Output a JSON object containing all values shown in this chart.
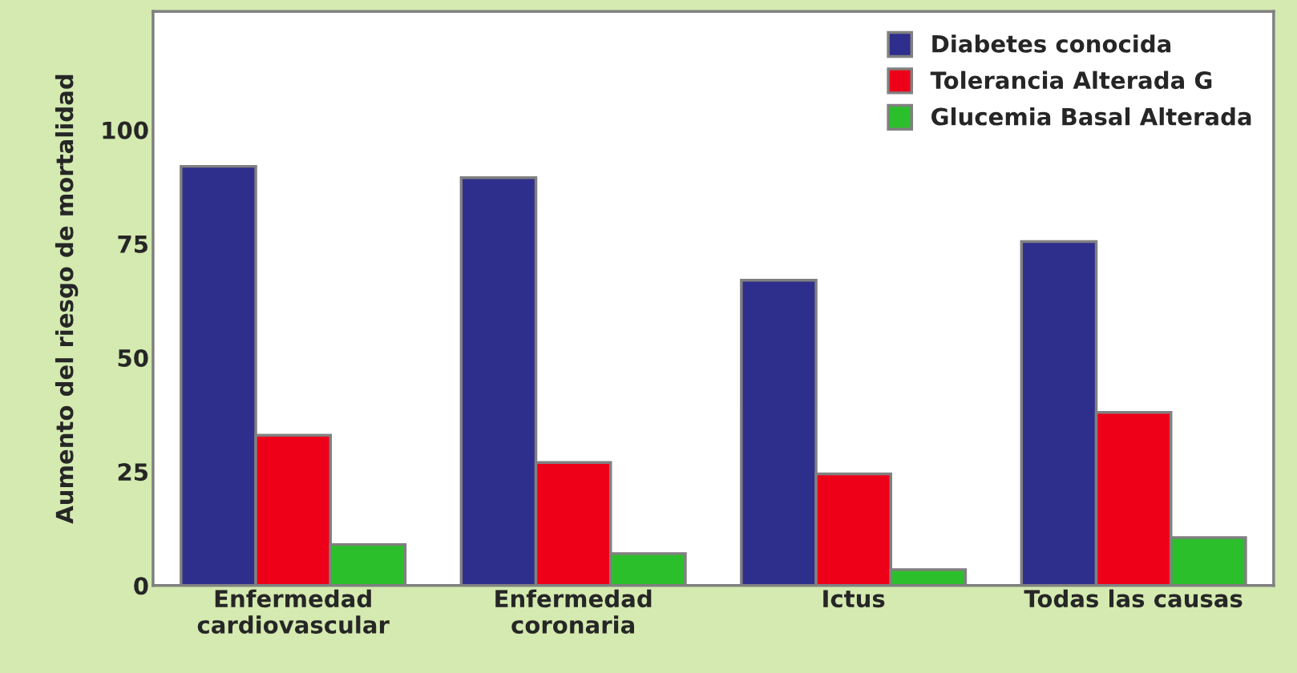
{
  "chart_data": {
    "type": "bar",
    "ylabel": "Aumento del riesgo de mortalidad",
    "categories": [
      "Enfermedad\ncardiovascular",
      "Enfermedad\ncoronaria",
      "Ictus",
      "Todas las causas"
    ],
    "series": [
      {
        "name": "Diabetes conocida",
        "color": "#2e2e8c",
        "values": [
          92,
          89.5,
          67,
          75.5
        ]
      },
      {
        "name": "Tolerancia Alterada G",
        "color": "#ee0018",
        "values": [
          33,
          27,
          24.5,
          38
        ]
      },
      {
        "name": "Glucemia Basal Alterada",
        "color": "#2cbf2c",
        "values": [
          9,
          7,
          3.5,
          10.5
        ]
      }
    ],
    "ylim": [
      0,
      126
    ],
    "yticks": [
      0,
      25,
      50,
      75,
      100
    ],
    "grid": false,
    "legend": "top right"
  }
}
